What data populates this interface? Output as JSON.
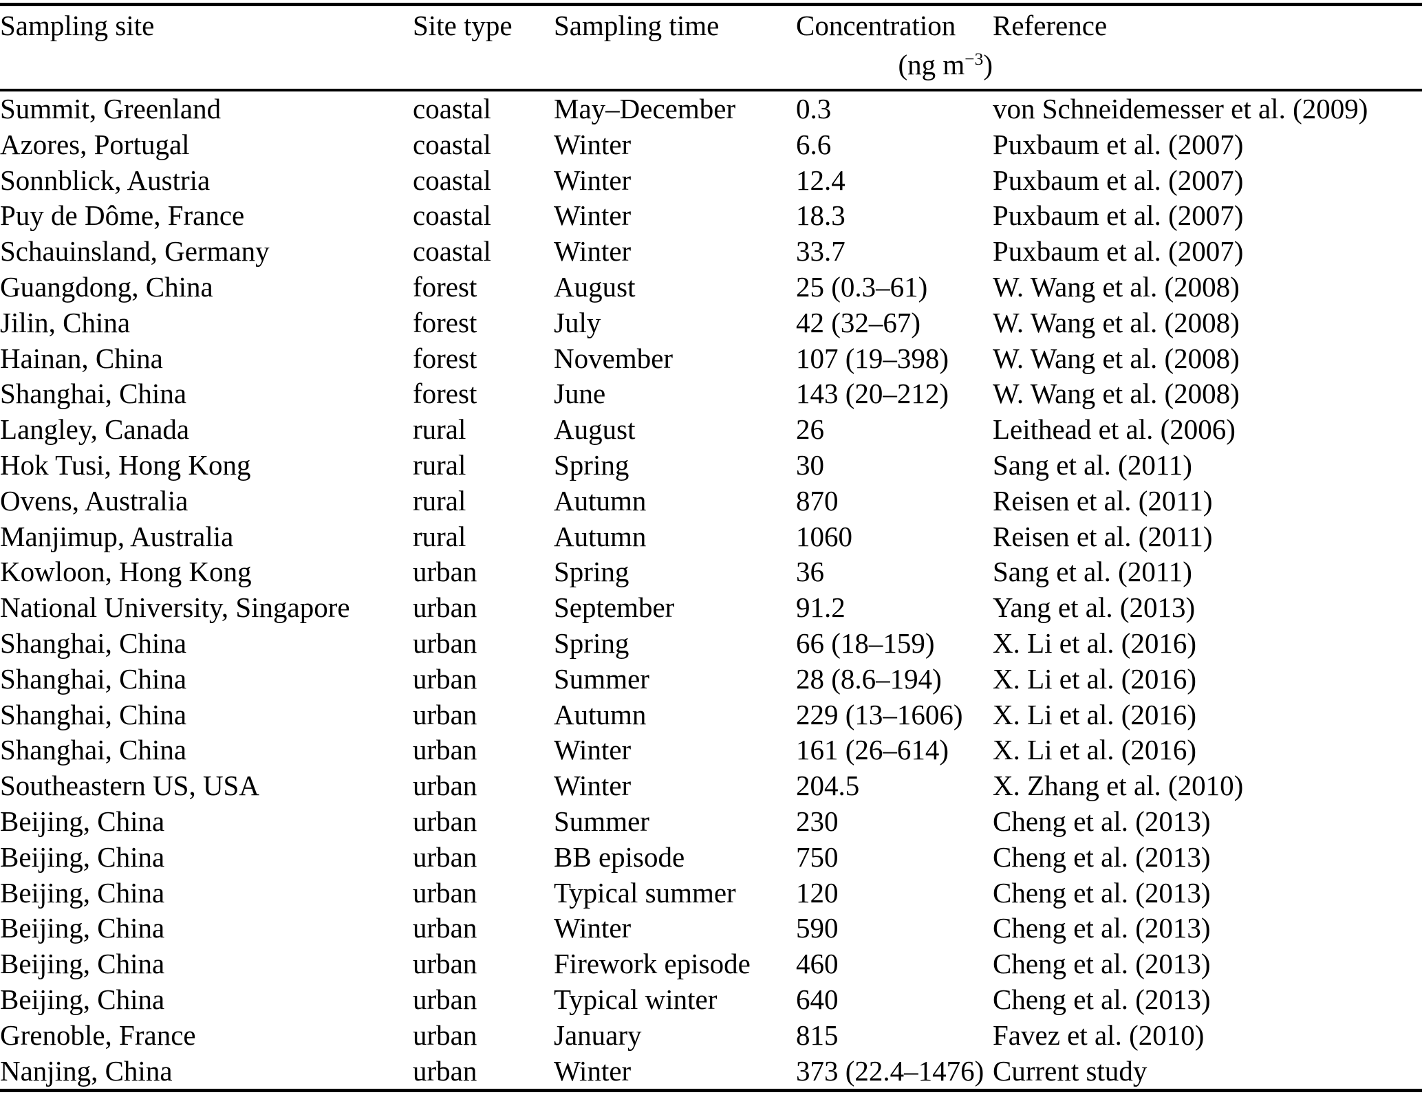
{
  "page": {
    "background_color": "#ffffff",
    "text_color": "#000000"
  },
  "table": {
    "headers": {
      "site": "Sampling site",
      "site_type": "Site type",
      "sampling_time": "Sampling time",
      "concentration": "Concentration",
      "concentration_unit_open": "(ng m",
      "concentration_unit_exponent": "−3",
      "concentration_unit_close": ")",
      "reference": "Reference"
    },
    "rows": [
      {
        "site": "Summit, Greenland",
        "type": "coastal",
        "time": "May–December",
        "conc": "0.3",
        "ref": "von Schneidemesser et al. (2009)"
      },
      {
        "site": "Azores, Portugal",
        "type": "coastal",
        "time": "Winter",
        "conc": "6.6",
        "ref": "Puxbaum et al. (2007)"
      },
      {
        "site": "Sonnblick, Austria",
        "type": "coastal",
        "time": "Winter",
        "conc": "12.4",
        "ref": "Puxbaum et al. (2007)"
      },
      {
        "site": "Puy de Dôme, France",
        "type": "coastal",
        "time": "Winter",
        "conc": "18.3",
        "ref": "Puxbaum et al. (2007)"
      },
      {
        "site": "Schauinsland, Germany",
        "type": "coastal",
        "time": "Winter",
        "conc": "33.7",
        "ref": "Puxbaum et al. (2007)"
      },
      {
        "site": "Guangdong, China",
        "type": "forest",
        "time": "August",
        "conc": "25 (0.3–61)",
        "ref": "W. Wang et al. (2008)"
      },
      {
        "site": "Jilin, China",
        "type": "forest",
        "time": "July",
        "conc": "42 (32–67)",
        "ref": "W. Wang et al. (2008)"
      },
      {
        "site": "Hainan, China",
        "type": "forest",
        "time": "November",
        "conc": "107 (19–398)",
        "ref": "W. Wang et al. (2008)"
      },
      {
        "site": "Shanghai, China",
        "type": "forest",
        "time": "June",
        "conc": "143 (20–212)",
        "ref": "W. Wang et al. (2008)"
      },
      {
        "site": "Langley, Canada",
        "type": "rural",
        "time": "August",
        "conc": "26",
        "ref": "Leithead et al. (2006)"
      },
      {
        "site": "Hok Tusi, Hong Kong",
        "type": "rural",
        "time": "Spring",
        "conc": "30",
        "ref": "Sang et al. (2011)"
      },
      {
        "site": "Ovens, Australia",
        "type": "rural",
        "time": "Autumn",
        "conc": "870",
        "ref": "Reisen et al. (2011)"
      },
      {
        "site": "Manjimup, Australia",
        "type": "rural",
        "time": "Autumn",
        "conc": "1060",
        "ref": "Reisen et al. (2011)"
      },
      {
        "site": "Kowloon, Hong Kong",
        "type": "urban",
        "time": "Spring",
        "conc": "36",
        "ref": "Sang et al. (2011)"
      },
      {
        "site": "National University, Singapore",
        "type": "urban",
        "time": "September",
        "conc": "91.2",
        "ref": "Yang et al. (2013)"
      },
      {
        "site": "Shanghai, China",
        "type": "urban",
        "time": "Spring",
        "conc": "66 (18–159)",
        "ref": "X. Li et al. (2016)"
      },
      {
        "site": "Shanghai, China",
        "type": "urban",
        "time": "Summer",
        "conc": "28 (8.6–194)",
        "ref": "X. Li et al. (2016)"
      },
      {
        "site": "Shanghai, China",
        "type": "urban",
        "time": "Autumn",
        "conc": "229 (13–1606)",
        "ref": "X. Li et al. (2016)"
      },
      {
        "site": "Shanghai, China",
        "type": "urban",
        "time": "Winter",
        "conc": "161 (26–614)",
        "ref": "X. Li et al. (2016)"
      },
      {
        "site": "Southeastern US, USA",
        "type": "urban",
        "time": "Winter",
        "conc": "204.5",
        "ref": "X. Zhang et al. (2010)"
      },
      {
        "site": "Beijing, China",
        "type": "urban",
        "time": "Summer",
        "conc": "230",
        "ref": "Cheng et al. (2013)"
      },
      {
        "site": "Beijing, China",
        "type": "urban",
        "time": "BB episode",
        "conc": "750",
        "ref": "Cheng et al. (2013)"
      },
      {
        "site": "Beijing, China",
        "type": "urban",
        "time": "Typical summer",
        "conc": "120",
        "ref": "Cheng et al. (2013)"
      },
      {
        "site": "Beijing, China",
        "type": "urban",
        "time": "Winter",
        "conc": "590",
        "ref": "Cheng et al. (2013)"
      },
      {
        "site": "Beijing, China",
        "type": "urban",
        "time": "Firework episode",
        "conc": "460",
        "ref": "Cheng et al. (2013)"
      },
      {
        "site": "Beijing, China",
        "type": "urban",
        "time": "Typical winter",
        "conc": "640",
        "ref": "Cheng et al. (2013)"
      },
      {
        "site": "Grenoble, France",
        "type": "urban",
        "time": "January",
        "conc": "815",
        "ref": "Favez et al. (2010)"
      },
      {
        "site": "Nanjing, China",
        "type": "urban",
        "time": "Winter",
        "conc": "373 (22.4–1476)",
        "ref": "Current study"
      }
    ]
  }
}
